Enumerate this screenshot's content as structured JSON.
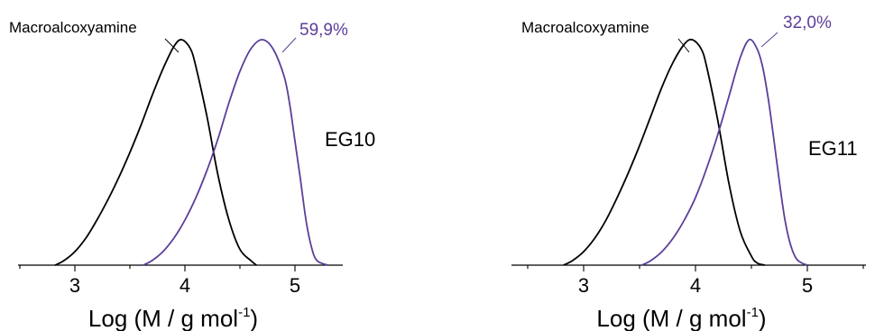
{
  "colors": {
    "axis": "#000000",
    "reference": "#000000",
    "sample": "#5b3f9a",
    "label_text": "#000000"
  },
  "chart_data": [
    {
      "type": "line",
      "xlabel": "Log (M / g mol",
      "xlabel_sup": "-1",
      "xlabel_close": ")",
      "xlim": [
        2.5,
        5.5
      ],
      "ylim": [
        0,
        1.0
      ],
      "xticks": [
        3,
        4,
        5
      ],
      "xtick_labels": [
        "3",
        "4",
        "5"
      ],
      "sample_label": "EG10",
      "series": [
        {
          "name": "Macroalcoxyamine",
          "x": [
            2.82,
            2.9,
            3.0,
            3.1,
            3.2,
            3.3,
            3.4,
            3.5,
            3.6,
            3.7,
            3.8,
            3.9,
            3.97,
            4.05,
            4.1,
            4.2,
            4.3,
            4.4,
            4.5,
            4.6,
            4.65
          ],
          "y": [
            0,
            0.02,
            0.06,
            0.12,
            0.2,
            0.29,
            0.39,
            0.5,
            0.62,
            0.75,
            0.87,
            0.97,
            1.0,
            0.96,
            0.88,
            0.66,
            0.4,
            0.2,
            0.07,
            0.02,
            0
          ]
        },
        {
          "name": "59,9%",
          "x": [
            3.62,
            3.7,
            3.8,
            3.9,
            4.0,
            4.1,
            4.2,
            4.3,
            4.4,
            4.5,
            4.6,
            4.7,
            4.8,
            4.9,
            4.95,
            5.0,
            5.05,
            5.1,
            5.15,
            5.2,
            5.3
          ],
          "y": [
            0,
            0.02,
            0.06,
            0.12,
            0.2,
            0.3,
            0.42,
            0.56,
            0.72,
            0.86,
            0.96,
            1.0,
            0.96,
            0.84,
            0.72,
            0.55,
            0.38,
            0.2,
            0.08,
            0.02,
            0
          ]
        }
      ]
    },
    {
      "type": "line",
      "xlabel": "Log (M / g mol",
      "xlabel_sup": "-1",
      "xlabel_close": ")",
      "xlim": [
        2.5,
        5.5
      ],
      "ylim": [
        0,
        1.0
      ],
      "xticks": [
        3,
        4,
        5
      ],
      "xtick_labels": [
        "3",
        "4",
        "5"
      ],
      "sample_label": "EG11",
      "series": [
        {
          "name": "Macroalcoxyamine",
          "x": [
            2.82,
            2.9,
            3.0,
            3.1,
            3.2,
            3.3,
            3.4,
            3.5,
            3.6,
            3.7,
            3.8,
            3.9,
            3.97,
            4.05,
            4.1,
            4.2,
            4.3,
            4.4,
            4.5,
            4.55,
            4.62
          ],
          "y": [
            0,
            0.02,
            0.06,
            0.12,
            0.2,
            0.3,
            0.41,
            0.53,
            0.66,
            0.79,
            0.9,
            0.98,
            1.0,
            0.96,
            0.88,
            0.64,
            0.36,
            0.15,
            0.04,
            0.01,
            0
          ]
        },
        {
          "name": "32,0%",
          "x": [
            3.52,
            3.6,
            3.7,
            3.8,
            3.9,
            4.0,
            4.1,
            4.2,
            4.3,
            4.4,
            4.48,
            4.55,
            4.6,
            4.65,
            4.7,
            4.75,
            4.8,
            4.85,
            4.9,
            4.95,
            5.0
          ],
          "y": [
            0,
            0.02,
            0.06,
            0.12,
            0.2,
            0.3,
            0.43,
            0.58,
            0.75,
            0.92,
            1.0,
            0.96,
            0.88,
            0.74,
            0.56,
            0.37,
            0.2,
            0.09,
            0.03,
            0.01,
            0
          ]
        }
      ]
    }
  ]
}
